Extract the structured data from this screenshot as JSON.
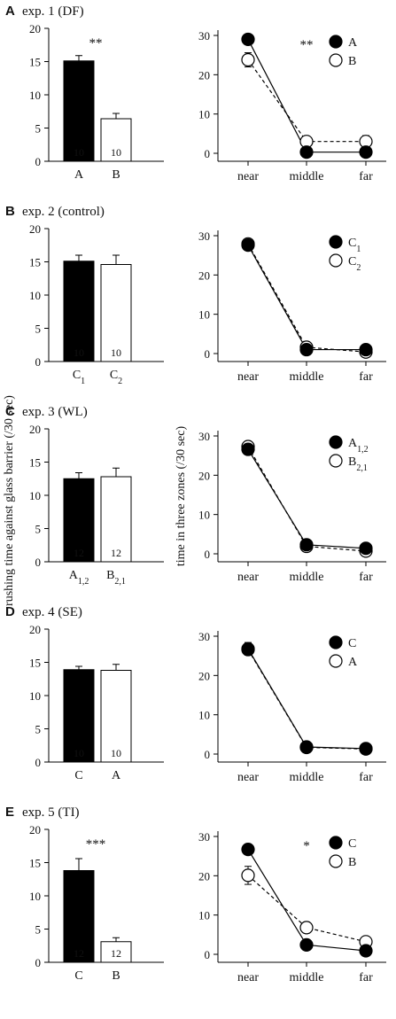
{
  "ylabels": {
    "left": "rushing time against glass barrier (/30 sec)",
    "right": "time in three zones (/30 sec)"
  },
  "zones": [
    "near",
    "middle",
    "far"
  ],
  "chart_data": [
    {
      "id": "A",
      "letter": "A",
      "title": "exp. 1 (DF)",
      "bar": {
        "type": "bar",
        "ylim": [
          0,
          20
        ],
        "ticks": [
          0,
          5,
          10,
          15,
          20
        ],
        "categories": [
          {
            "main": "A",
            "sub": ""
          },
          {
            "main": "B",
            "sub": ""
          }
        ],
        "values": [
          15.1,
          6.4
        ],
        "errors": [
          0.8,
          0.8
        ],
        "n": [
          "10",
          "10"
        ],
        "fills": [
          "#000000",
          "#ffffff"
        ],
        "sig": "**"
      },
      "line": {
        "type": "line",
        "ylim": [
          0,
          30
        ],
        "ticks": [
          0,
          10,
          20,
          30
        ],
        "series": [
          {
            "name": "A",
            "sub": "",
            "marker": "filled",
            "dash": false,
            "values": [
              29.0,
              0.3,
              0.3
            ],
            "errors": [
              0.6,
              0.3,
              0.3
            ]
          },
          {
            "name": "B",
            "sub": "",
            "marker": "open",
            "dash": true,
            "values": [
              23.8,
              3.0,
              3.0
            ],
            "errors": [
              1.8,
              0.9,
              1.5
            ]
          }
        ],
        "sig": "**"
      }
    },
    {
      "id": "B",
      "letter": "B",
      "title": "exp. 2 (control)",
      "bar": {
        "type": "bar",
        "ylim": [
          0,
          20
        ],
        "ticks": [
          0,
          5,
          10,
          15,
          20
        ],
        "categories": [
          {
            "main": "C",
            "sub": "1"
          },
          {
            "main": "C",
            "sub": "2"
          }
        ],
        "values": [
          15.1,
          14.6
        ],
        "errors": [
          0.9,
          1.4
        ],
        "n": [
          "10",
          "10"
        ],
        "fills": [
          "#000000",
          "#ffffff"
        ],
        "sig": ""
      },
      "line": {
        "type": "line",
        "ylim": [
          0,
          30
        ],
        "ticks": [
          0,
          10,
          20,
          30
        ],
        "series": [
          {
            "name": "C",
            "sub": "1",
            "marker": "filled",
            "dash": false,
            "values": [
              27.6,
              1.0,
              1.0
            ],
            "errors": [
              0.6,
              0.4,
              0.4
            ]
          },
          {
            "name": "C",
            "sub": "2",
            "marker": "open",
            "dash": true,
            "values": [
              27.9,
              1.6,
              0.4
            ],
            "errors": [
              0.6,
              0.5,
              0.3
            ]
          }
        ],
        "sig": ""
      }
    },
    {
      "id": "C",
      "letter": "C",
      "title": "exp. 3 (WL)",
      "bar": {
        "type": "bar",
        "ylim": [
          0,
          20
        ],
        "ticks": [
          0,
          5,
          10,
          15,
          20
        ],
        "categories": [
          {
            "main": "A",
            "sub": "1,2"
          },
          {
            "main": "B",
            "sub": "2,1"
          }
        ],
        "values": [
          12.5,
          12.8
        ],
        "errors": [
          0.9,
          1.3
        ],
        "n": [
          "12",
          "12"
        ],
        "fills": [
          "#000000",
          "#ffffff"
        ],
        "sig": ""
      },
      "line": {
        "type": "line",
        "ylim": [
          0,
          30
        ],
        "ticks": [
          0,
          10,
          20,
          30
        ],
        "series": [
          {
            "name": "A",
            "sub": "1,2",
            "marker": "filled",
            "dash": false,
            "values": [
              26.6,
              2.3,
              1.4
            ],
            "errors": [
              0.7,
              0.4,
              0.4
            ]
          },
          {
            "name": "B",
            "sub": "2,1",
            "marker": "open",
            "dash": true,
            "values": [
              27.3,
              1.9,
              0.7
            ],
            "errors": [
              0.7,
              0.4,
              0.3
            ]
          }
        ],
        "sig": ""
      }
    },
    {
      "id": "D",
      "letter": "D",
      "title": "exp. 4 (SE)",
      "bar": {
        "type": "bar",
        "ylim": [
          0,
          20
        ],
        "ticks": [
          0,
          5,
          10,
          15,
          20
        ],
        "categories": [
          {
            "main": "C",
            "sub": ""
          },
          {
            "main": "A",
            "sub": ""
          }
        ],
        "values": [
          13.9,
          13.8
        ],
        "errors": [
          0.5,
          0.9
        ],
        "n": [
          "10",
          "10"
        ],
        "fills": [
          "#000000",
          "#ffffff"
        ],
        "sig": ""
      },
      "line": {
        "type": "line",
        "ylim": [
          0,
          30
        ],
        "ticks": [
          0,
          10,
          20,
          30
        ],
        "series": [
          {
            "name": "C",
            "sub": "",
            "marker": "filled",
            "dash": false,
            "values": [
              26.8,
              1.8,
              1.4
            ],
            "errors": [
              1.6,
              0.4,
              0.4
            ]
          },
          {
            "name": "A",
            "sub": "",
            "marker": "open",
            "dash": true,
            "values": [
              26.6,
              1.7,
              1.3
            ],
            "errors": [
              1.3,
              0.4,
              0.4
            ]
          }
        ],
        "sig": ""
      }
    },
    {
      "id": "E",
      "letter": "E",
      "title": "exp. 5 (TI)",
      "bar": {
        "type": "bar",
        "ylim": [
          0,
          20
        ],
        "ticks": [
          0,
          5,
          10,
          15,
          20
        ],
        "categories": [
          {
            "main": "C",
            "sub": ""
          },
          {
            "main": "B",
            "sub": ""
          }
        ],
        "values": [
          13.8,
          3.1
        ],
        "errors": [
          1.8,
          0.6
        ],
        "n": [
          "12",
          "12"
        ],
        "fills": [
          "#000000",
          "#ffffff"
        ],
        "sig": "***"
      },
      "line": {
        "type": "line",
        "ylim": [
          0,
          30
        ],
        "ticks": [
          0,
          10,
          20,
          30
        ],
        "series": [
          {
            "name": "C",
            "sub": "",
            "marker": "filled",
            "dash": false,
            "values": [
              26.7,
              2.4,
              0.9
            ],
            "errors": [
              0.7,
              0.5,
              0.5
            ]
          },
          {
            "name": "B",
            "sub": "",
            "marker": "open",
            "dash": true,
            "values": [
              20.1,
              6.8,
              3.2
            ],
            "errors": [
              2.3,
              1.4,
              1.2
            ]
          }
        ],
        "sig": "*"
      }
    }
  ]
}
